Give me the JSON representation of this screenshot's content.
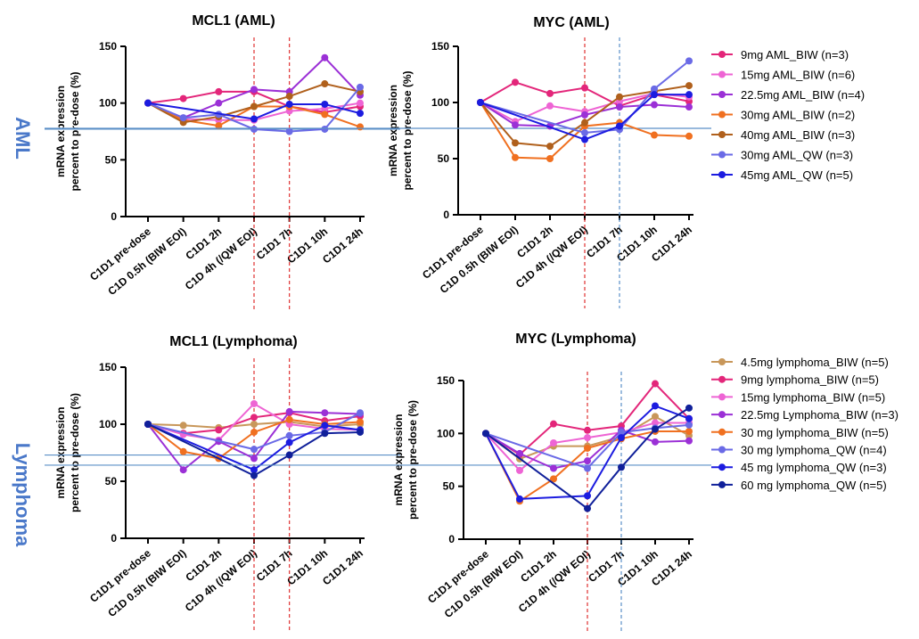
{
  "groups": {
    "aml": "AML",
    "lymphoma": "Lymphoma"
  },
  "ylabel_line1": "mRNA expression",
  "ylabel_line2": "percent to pre-dose (%)",
  "chart_data": [
    {
      "type": "line",
      "title": "MCL1 (AML)",
      "categories": [
        "C1D1 pre-dose",
        "C1D 0.5h (BIW EOI)",
        "C1D1 2h",
        "C1D 4h (/QW EOI)",
        "C1D1 7h",
        "C1D1 10h",
        "C1D1 24h"
      ],
      "ylim": [
        0,
        150
      ],
      "yticks": [
        0,
        50,
        100,
        150
      ],
      "ylabel": "mRNA expression percent to pre-dose (%)",
      "ref_line_y": 77,
      "vlines_after_index": [
        3,
        4
      ],
      "vline_color": "#e03030",
      "series": [
        {
          "name": "9mg AML_BIW (n=3)",
          "color": "#e3267a",
          "values": [
            100,
            104,
            110,
            110,
            97,
            92,
            97
          ]
        },
        {
          "name": "15mg AML_BIW (n=6)",
          "color": "#ee64d4",
          "values": [
            100,
            86,
            85,
            85,
            93,
            95,
            100
          ]
        },
        {
          "name": "22.5mg AML_BIW (n=4)",
          "color": "#9b30d6",
          "values": [
            100,
            87,
            100,
            112,
            110,
            140,
            107
          ]
        },
        {
          "name": "30mg AML_BIW (n=2)",
          "color": "#f07020",
          "values": [
            100,
            85,
            80,
            97,
            97,
            90,
            79
          ]
        },
        {
          "name": "40mg AML_BIW (n=3)",
          "color": "#b0601c",
          "values": [
            100,
            83,
            88,
            97,
            106,
            117,
            110
          ]
        },
        {
          "name": "30mg AML_QW (n=3)",
          "color": "#6a6ae6",
          "values": [
            100,
            87,
            90,
            77,
            75,
            77,
            114
          ]
        },
        {
          "name": "45mg AML_QW (n=5)",
          "color": "#1c1ce0",
          "values": [
            100,
            null,
            null,
            86,
            99,
            99,
            91
          ]
        }
      ]
    },
    {
      "type": "line",
      "title": "MYC (AML)",
      "categories": [
        "C1D1 pre-dose",
        "C1D 0.5h (BIW EOI)",
        "C1D1 2h",
        "C1D 4h (/QW EOI)",
        "C1D1 7h",
        "C1D1 10h",
        "C1D1 24h"
      ],
      "ylim": [
        0,
        150
      ],
      "yticks": [
        0,
        50,
        100,
        150
      ],
      "ylabel": "mRNA expression percent to pre-dose (%)",
      "ref_line_y": 77,
      "vlines_after_index": [
        3,
        4
      ],
      "vline_color": "#e03030",
      "series": [
        {
          "name": "9mg AML_BIW (n=3)",
          "color": "#e3267a",
          "values": [
            100,
            118,
            108,
            113,
            97,
            107,
            101
          ]
        },
        {
          "name": "15mg AML_BIW (n=6)",
          "color": "#ee64d4",
          "values": [
            100,
            83,
            97,
            92,
            101,
            108,
            105
          ]
        },
        {
          "name": "22.5mg AML_BIW (n=4)",
          "color": "#9b30d6",
          "values": [
            100,
            80,
            79,
            89,
            96,
            98,
            96
          ]
        },
        {
          "name": "30mg AML_BIW (n=2)",
          "color": "#f07020",
          "values": [
            100,
            51,
            50,
            79,
            82,
            71,
            70
          ]
        },
        {
          "name": "40mg AML_BIW (n=3)",
          "color": "#b0601c",
          "values": [
            100,
            64,
            61,
            82,
            105,
            110,
            115
          ]
        },
        {
          "name": "30mg AML_QW (n=3)",
          "color": "#6a6ae6",
          "values": [
            100,
            null,
            null,
            73,
            76,
            112,
            137
          ]
        },
        {
          "name": "45mg AML_QW (n=5)",
          "color": "#1c1ce0",
          "values": [
            100,
            null,
            null,
            67,
            79,
            107,
            107
          ]
        }
      ]
    },
    {
      "type": "line",
      "title": "MCL1 (Lymphoma)",
      "categories": [
        "C1D1 pre-dose",
        "C1D 0.5h (BIW EOI)",
        "C1D1 2h",
        "C1D 4h (/QW EOI)",
        "C1D1 7h",
        "C1D1 10h",
        "C1D1 24h"
      ],
      "ylim": [
        0,
        150
      ],
      "yticks": [
        0,
        50,
        100,
        150
      ],
      "ylabel": "mRNA expression percent to pre-dose (%)",
      "ref_line_y": 73,
      "vlines_after_index": [
        3,
        4
      ],
      "vline_color": "#e03030",
      "series": [
        {
          "name": "4.5mg lymphoma_BIW (n=5)",
          "color": "#c8975a",
          "values": [
            100,
            99,
            97,
            100,
            102,
            98,
            100
          ]
        },
        {
          "name": "9mg lymphoma_BIW (n=5)",
          "color": "#e3267a",
          "values": [
            100,
            92,
            95,
            106,
            110,
            103,
            107
          ]
        },
        {
          "name": "15mg lymphoma_BIW (n=5)",
          "color": "#ee64d4",
          "values": [
            100,
            91,
            86,
            118,
            100,
            96,
            95
          ]
        },
        {
          "name": "22.5mg Lymphoma_BIW (n=3)",
          "color": "#9b30d6",
          "values": [
            100,
            60,
            85,
            70,
            111,
            110,
            109
          ]
        },
        {
          "name": "30 mg lymphoma_BIW (n=5)",
          "color": "#f07020",
          "values": [
            100,
            76,
            70,
            93,
            104,
            100,
            102
          ]
        },
        {
          "name": "30 mg lymphoma_QW (n=4)",
          "color": "#6a6ae6",
          "values": [
            100,
            null,
            null,
            78,
            90,
            93,
            110
          ]
        },
        {
          "name": "45 mg lymphoma_QW (n=3)",
          "color": "#1c1ce0",
          "values": [
            100,
            null,
            null,
            60,
            84,
            99,
            95
          ]
        },
        {
          "name": "60 mg lymphoma_QW (n=5)",
          "color": "#10209a",
          "values": [
            100,
            null,
            null,
            55,
            73,
            92,
            93
          ]
        }
      ]
    },
    {
      "type": "line",
      "title": "MYC (Lymphoma)",
      "categories": [
        "C1D1 pre-dose",
        "C1D 0.5h (BIW EOI)",
        "C1D1 2h",
        "C1D 4h (/QW EOI)",
        "C1D1 7h",
        "C1D1 10h",
        "C1D1 24h"
      ],
      "ylim": [
        0,
        150
      ],
      "yticks": [
        0,
        50,
        100,
        150
      ],
      "ylabel": "mRNA expression percent to pre-dose (%)",
      "ref_line_y": 70,
      "vlines_after_index": [
        3,
        4
      ],
      "vline_color": "#e03030",
      "series": [
        {
          "name": "4.5mg lymphoma_BIW (n=5)",
          "color": "#c8975a",
          "values": [
            100,
            76,
            88,
            88,
            97,
            116,
            98
          ]
        },
        {
          "name": "9mg lymphoma_BIW (n=5)",
          "color": "#e3267a",
          "values": [
            100,
            80,
            109,
            103,
            107,
            147,
            114
          ]
        },
        {
          "name": "15mg lymphoma_BIW (n=5)",
          "color": "#ee64d4",
          "values": [
            100,
            65,
            91,
            96,
            101,
            110,
            110
          ]
        },
        {
          "name": "22.5mg Lymphoma_BIW (n=3)",
          "color": "#9b30d6",
          "values": [
            100,
            81,
            67,
            74,
            103,
            92,
            93
          ]
        },
        {
          "name": "30 mg lymphoma_BIW (n=5)",
          "color": "#f07020",
          "values": [
            100,
            36,
            57,
            86,
            95,
            102,
            102
          ]
        },
        {
          "name": "30 mg lymphoma_QW (n=4)",
          "color": "#6a6ae6",
          "values": [
            100,
            null,
            null,
            67,
            101,
            105,
            108
          ]
        },
        {
          "name": "45 mg lymphoma_QW (n=3)",
          "color": "#1c1ce0",
          "values": [
            100,
            38,
            null,
            41,
            96,
            126,
            114
          ]
        },
        {
          "name": "60 mg lymphoma_QW (n=5)",
          "color": "#10209a",
          "values": [
            100,
            null,
            null,
            29,
            68,
            104,
            124
          ]
        }
      ]
    }
  ],
  "legends": {
    "aml": [
      {
        "label": "9mg AML_BIW (n=3)",
        "color": "#e3267a"
      },
      {
        "label": "15mg AML_BIW (n=6)",
        "color": "#ee64d4"
      },
      {
        "label": "22.5mg AML_BIW (n=4)",
        "color": "#9b30d6"
      },
      {
        "label": "30mg AML_BIW (n=2)",
        "color": "#f07020"
      },
      {
        "label": "40mg AML_BIW (n=3)",
        "color": "#b0601c"
      },
      {
        "label": "30mg AML_QW (n=3)",
        "color": "#6a6ae6"
      },
      {
        "label": "45mg AML_QW (n=5)",
        "color": "#1c1ce0"
      }
    ],
    "lymphoma": [
      {
        "label": "4.5mg lymphoma_BIW  (n=5)",
        "color": "#c8975a"
      },
      {
        "label": "9mg lymphoma_BIW  (n=5)",
        "color": "#e3267a"
      },
      {
        "label": "15mg lymphoma_BIW  (n=5)",
        "color": "#ee64d4"
      },
      {
        "label": "22.5mg Lymphoma_BIW (n=3)",
        "color": "#9b30d6"
      },
      {
        "label": "30 mg lymphoma_BIW  (n=5)",
        "color": "#f07020"
      },
      {
        "label": "30 mg lymphoma_QW (n=4)",
        "color": "#6a6ae6"
      },
      {
        "label": "45 mg lymphoma_QW (n=3)",
        "color": "#1c1ce0"
      },
      {
        "label": "60 mg lymphoma_QW (n=5)",
        "color": "#10209a"
      }
    ]
  },
  "ref_line_color": "#5b8fc7",
  "qw_vline_color": "#5b8fc7"
}
